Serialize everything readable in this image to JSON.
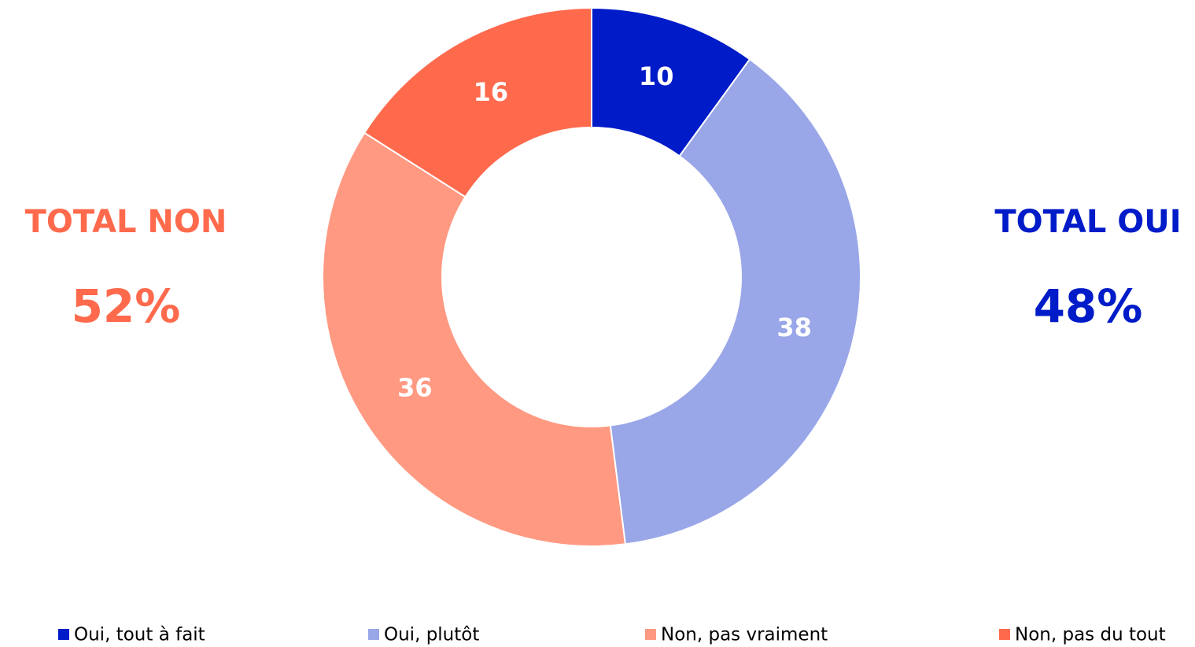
{
  "chart_data": {
    "type": "donut",
    "categories": [
      "Oui, tout à fait",
      "Oui, plutôt",
      "Non, pas vraiment",
      "Non, pas du tout"
    ],
    "values": [
      10,
      38,
      36,
      16
    ],
    "colors": [
      "#001bc8",
      "#99a6e8",
      "#ff9982",
      "#ff6a4d"
    ],
    "annotations": [
      {
        "title": "TOTAL NON",
        "text": "52%",
        "color": "#ff6a4d"
      },
      {
        "title": "TOTAL OUI",
        "text": "48%",
        "color": "#001bc8"
      }
    ],
    "legend": "bottom"
  }
}
